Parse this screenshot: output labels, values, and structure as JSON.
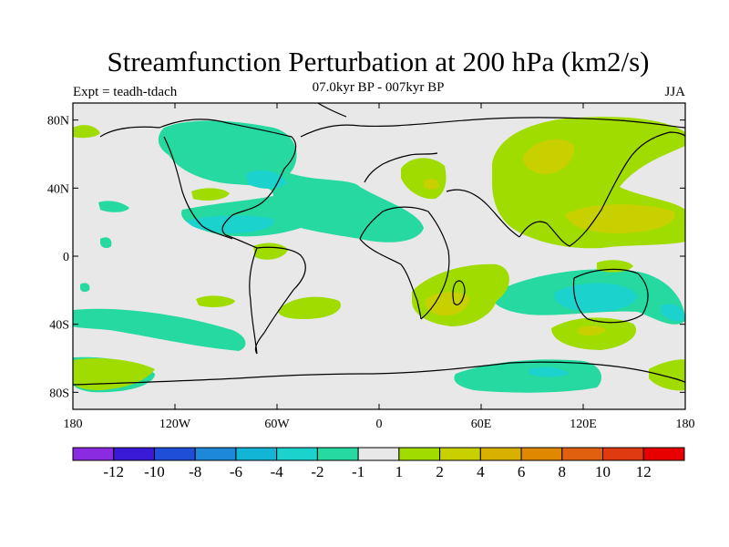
{
  "header": {
    "title": "Streamfunction Perturbation at 200 hPa (km2/s)",
    "subtitle": "07.0kyr BP - 007kyr BP",
    "left_label": "Expt = teadh-tdach",
    "right_label": "JJA"
  },
  "map": {
    "projection": "cylindrical equidistant",
    "lon_range": [
      -180,
      180
    ],
    "lat_range": [
      -90,
      90
    ],
    "lat_ticks": [
      {
        "value": 80,
        "label": "80N"
      },
      {
        "value": 40,
        "label": "40N"
      },
      {
        "value": 0,
        "label": "0"
      },
      {
        "value": -40,
        "label": "40S"
      },
      {
        "value": -80,
        "label": "80S"
      }
    ],
    "lon_ticks": [
      {
        "value": -180,
        "label": "180"
      },
      {
        "value": -120,
        "label": "120W"
      },
      {
        "value": -60,
        "label": "60W"
      },
      {
        "value": 0,
        "label": "0"
      },
      {
        "value": 60,
        "label": "60E"
      },
      {
        "value": 120,
        "label": "120E"
      },
      {
        "value": 180,
        "label": "180"
      }
    ]
  },
  "colorbar": {
    "colors": [
      "#8a2be2",
      "#3a1ad6",
      "#1f4ed8",
      "#1e88d8",
      "#12b5d6",
      "#1cd2cc",
      "#25d9a0",
      "#e8e8e8",
      "#a0dc00",
      "#c8d000",
      "#d8b000",
      "#e08800",
      "#e06010",
      "#e03a10",
      "#e80000"
    ],
    "labels": [
      "-12",
      "-10",
      "-8",
      "-6",
      "-4",
      "-2",
      "-1",
      "1",
      "2",
      "4",
      "6",
      "8",
      "10",
      "12"
    ]
  }
}
